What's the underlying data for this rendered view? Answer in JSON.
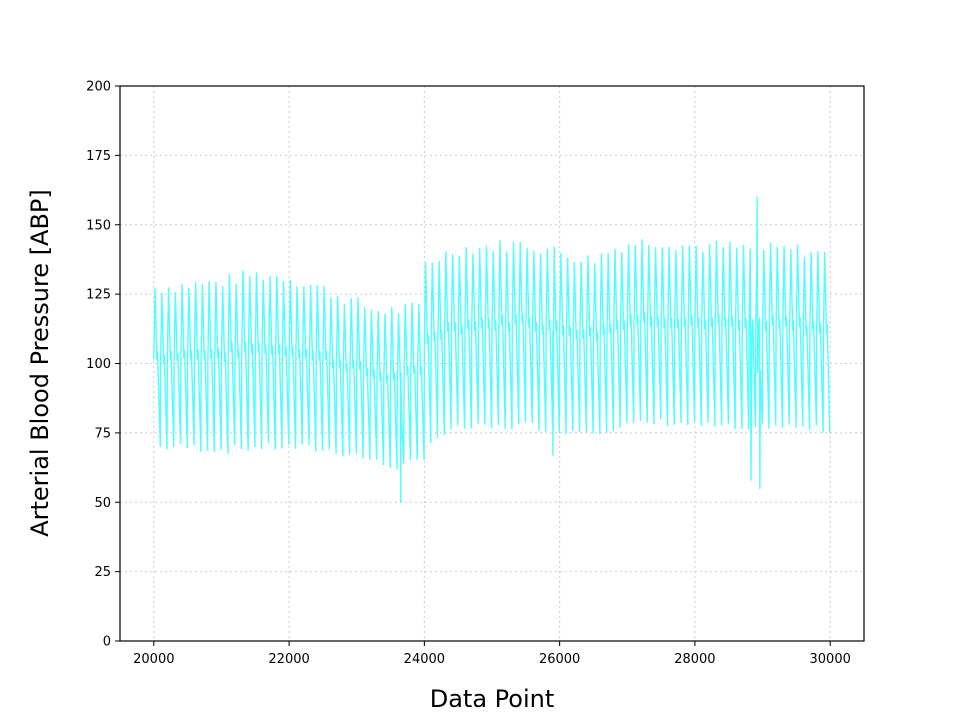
{
  "chart_data": {
    "type": "line",
    "title": "",
    "xlabel": "Data Point",
    "ylabel": "Arterial Blood Pressure [ABP]",
    "xlim": [
      19500,
      30500
    ],
    "ylim": [
      0,
      200
    ],
    "xticks": [
      20000,
      22000,
      24000,
      26000,
      28000,
      30000
    ],
    "yticks": [
      0,
      25,
      50,
      75,
      100,
      125,
      150,
      175,
      200
    ],
    "grid": true,
    "legend": "none",
    "series_color": "#4dffff",
    "series": [
      {
        "beat_period": 100,
        "x_range": [
          20000,
          30000
        ],
        "envelope_x": [
          20000,
          20500,
          21000,
          21500,
          22000,
          22500,
          23000,
          23300,
          23600,
          23950,
          24050,
          24500,
          25000,
          25500,
          26000,
          26500,
          27000,
          27500,
          28000,
          28500,
          28800,
          29000,
          29500,
          30000
        ],
        "systolic": [
          127,
          128,
          129,
          132,
          131,
          127,
          122,
          119,
          119,
          120,
          136,
          141,
          142,
          143,
          140,
          137,
          143,
          144,
          142,
          142,
          141,
          141,
          141,
          139
        ],
        "diastolic": [
          70,
          70,
          69,
          70,
          70,
          69,
          67,
          64,
          63,
          65,
          73,
          77,
          77,
          78,
          76,
          76,
          78,
          79,
          78,
          77,
          75,
          78,
          77,
          76
        ],
        "spikes": [
          {
            "x": 23650,
            "y": 50
          },
          {
            "x": 25900,
            "y": 67
          },
          {
            "x": 28830,
            "y": 58
          },
          {
            "x": 28920,
            "y": 160
          },
          {
            "x": 28960,
            "y": 55
          }
        ]
      }
    ]
  }
}
